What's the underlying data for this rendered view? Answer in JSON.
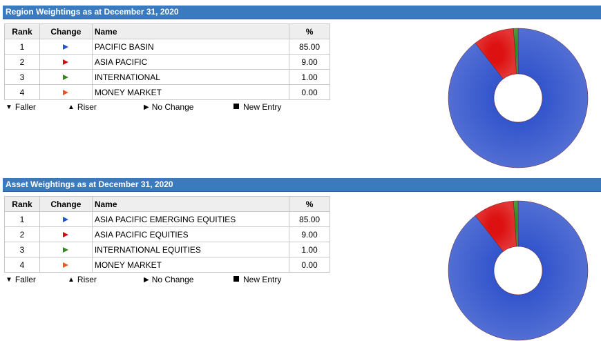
{
  "region": {
    "title": "Region Weightings as at December 31, 2020",
    "columns": {
      "rank": "Rank",
      "change": "Change",
      "name": "Name",
      "pct": "%"
    },
    "rows": [
      {
        "rank": "1",
        "change_color": "#2255cc",
        "name": "PACIFIC BASIN",
        "pct": "85.00"
      },
      {
        "rank": "2",
        "change_color": "#cc1111",
        "name": "ASIA PACIFIC",
        "pct": "9.00"
      },
      {
        "rank": "3",
        "change_color": "#338822",
        "name": "INTERNATIONAL",
        "pct": "1.00"
      },
      {
        "rank": "4",
        "change_color": "#ee5522",
        "name": "MONEY MARKET",
        "pct": "0.00"
      }
    ]
  },
  "asset": {
    "title": "Asset Weightings as at December 31, 2020",
    "columns": {
      "rank": "Rank",
      "change": "Change",
      "name": "Name",
      "pct": "%"
    },
    "rows": [
      {
        "rank": "1",
        "change_color": "#2255cc",
        "name": "ASIA PACIFIC EMERGING EQUITIES",
        "pct": "85.00"
      },
      {
        "rank": "2",
        "change_color": "#cc1111",
        "name": "ASIA PACIFIC EQUITIES",
        "pct": "9.00"
      },
      {
        "rank": "3",
        "change_color": "#338822",
        "name": "INTERNATIONAL EQUITIES",
        "pct": "1.00"
      },
      {
        "rank": "4",
        "change_color": "#ee5522",
        "name": "MONEY MARKET",
        "pct": "0.00"
      }
    ]
  },
  "legend": {
    "faller": "Faller",
    "riser": "Riser",
    "no_change": "No Change",
    "new_entry": "New Entry"
  },
  "chart_data": [
    {
      "type": "pie",
      "variant": "donut",
      "categories": [
        "PACIFIC BASIN",
        "ASIA PACIFIC",
        "INTERNATIONAL",
        "MONEY MARKET"
      ],
      "values": [
        85.0,
        9.0,
        1.0,
        0.0
      ],
      "colors": [
        "#3355cc",
        "#dd1111",
        "#338822",
        "#ee5522"
      ],
      "title": ""
    },
    {
      "type": "pie",
      "variant": "donut",
      "categories": [
        "ASIA PACIFIC EMERGING EQUITIES",
        "ASIA PACIFIC EQUITIES",
        "INTERNATIONAL EQUITIES",
        "MONEY MARKET"
      ],
      "values": [
        85.0,
        9.0,
        1.0,
        0.0
      ],
      "colors": [
        "#3355cc",
        "#dd1111",
        "#338822",
        "#ee5522"
      ],
      "title": ""
    }
  ]
}
